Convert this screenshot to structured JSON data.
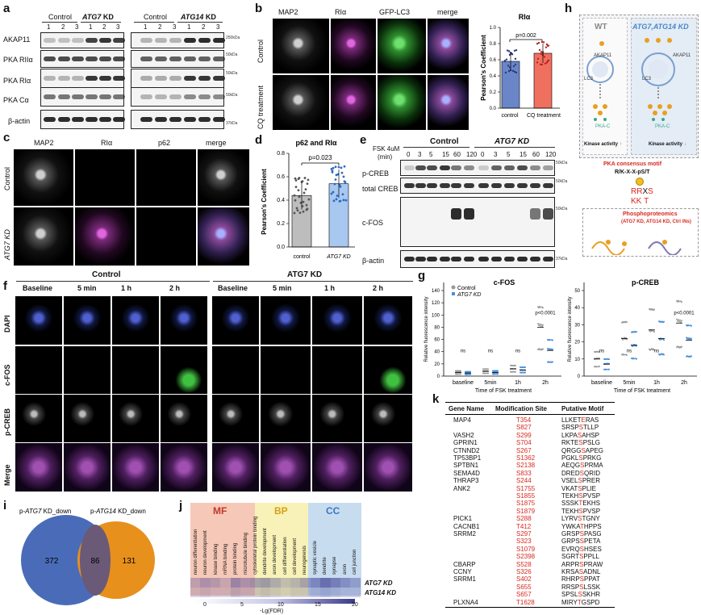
{
  "panels": {
    "a": "a",
    "b": "b",
    "c": "c",
    "d": "d",
    "e": "e",
    "f": "f",
    "g": "g",
    "h": "h",
    "i": "i",
    "j": "j",
    "k": "k"
  },
  "a": {
    "group1_control": "Control",
    "group1_kd": "ATG7",
    "group1_kd_suffix": " KD",
    "group2_control": "Control",
    "group2_kd": "ATG14",
    "group2_kd_suffix": " KD",
    "lanes": [
      "1",
      "2",
      "3",
      "1",
      "2",
      "3"
    ],
    "rows": [
      "AKAP11",
      "PKA RIIα",
      "PKA RIα",
      "PKA Cα",
      "β-actin"
    ],
    "mw1": [
      "250kDa",
      "50kDa",
      "50kDa",
      "50kDa",
      "37kDa"
    ]
  },
  "b": {
    "cols": [
      "MAP2",
      "RIα",
      "GFP-LC3",
      "merge"
    ],
    "rows": [
      "Control",
      "CQ treatment"
    ],
    "chart_title": "RIα",
    "pval": "p=0.002",
    "ylabel": "Pearson's Coefficient",
    "yticks": [
      "0.0",
      "0.2",
      "0.4",
      "0.6",
      "0.8",
      "1.0"
    ],
    "xcats": [
      "control",
      "CQ treatment"
    ]
  },
  "c": {
    "cols": [
      "MAP2",
      "RIα",
      "p62",
      "merge"
    ],
    "rows": [
      "Control",
      "ATG7 KD"
    ]
  },
  "d": {
    "title": "p62 and RIα",
    "pval": "p=0.023",
    "ylabel": "Pearson's Coefficient",
    "yticks": [
      "0.0",
      "0.2",
      "0.4",
      "0.6",
      "0.8"
    ],
    "xcats": [
      "control",
      "ATG7 KD"
    ]
  },
  "e": {
    "fsk": "FSK 4uM",
    "min": "(min)",
    "control": "Control",
    "kd": "ATG7 KD",
    "times": [
      "0",
      "3",
      "5",
      "15",
      "60",
      "120",
      "0",
      "3",
      "5",
      "15",
      "60",
      "120"
    ],
    "rows": [
      "p-CREB",
      "total CREB",
      "c-FOS",
      "β-actin"
    ],
    "mw": [
      "50kDa",
      "50kDa",
      "50kDa",
      "37kDa"
    ]
  },
  "f": {
    "control": "Control",
    "kd": "ATG7 KD",
    "times": [
      "Baseline",
      "5 min",
      "1 h",
      "2 h",
      "Baseline",
      "5 min",
      "1 h",
      "2 h"
    ],
    "rows": [
      "DAPI",
      "c-FOS",
      "p-CREB",
      "Merge"
    ]
  },
  "g": {
    "cfos_title": "c-FOS",
    "pcreb_title": "p-CREB",
    "legend": [
      "Control",
      "ATG7 KD"
    ],
    "ylabel": "Relative fluorescence intensity",
    "xlabel": "Time of FSK treatment",
    "xcats": [
      "baseline",
      "5min",
      "1h",
      "2h"
    ],
    "ns": "ns",
    "pval": "p<0.0001",
    "cfos_yticks": [
      "0",
      "20",
      "40",
      "60",
      "80",
      "100",
      "120",
      "140"
    ],
    "pcreb_yticks": [
      "0",
      "10",
      "20",
      "30",
      "40",
      "50"
    ]
  },
  "h": {
    "wt": "WT",
    "kd": "ATG7,ATG14 KD",
    "akap": "AKAP11",
    "lc3": "LC3",
    "pkac": "PKA-C",
    "kinase_activity": "Kinase activity",
    "up": "↑",
    "down": "↓",
    "motif_title": "PKA consensus motif",
    "motif": "R/K-X-X-pS/T",
    "rrxs_r": "RR",
    "rrxs_x": "X",
    "rrxs_s": "S",
    "kkt_k": "KK",
    "kkt_t": "T",
    "phospho": "Phosphoproteomics",
    "phospho_sub": "(ATG7 KD, ATG14 KD, Ctrl iNs)"
  },
  "i": {
    "label1": "p-ATG7 KD_down",
    "label2": "p-ATG14 KD_down",
    "left": "372",
    "mid": "86",
    "right": "131"
  },
  "j": {
    "mf": "MF",
    "bp": "BP",
    "cc": "CC",
    "terms": [
      "neuron differentiation",
      "neuron development",
      "kinase binding",
      "mRNA binding",
      "protein binding",
      "microtubule binding",
      "cytoskeletal protein binding",
      "dendrite development",
      "axon development",
      "cell differentiation",
      "cell development",
      "neurogenesis",
      "synaptic vesicle",
      "dendrite",
      "synapse",
      "axon",
      "cell junction"
    ],
    "rows": [
      "ATG7 KD",
      "ATG14 KD"
    ],
    "ticks": [
      "0",
      "5",
      "10",
      "15",
      "20"
    ],
    "xlabel": "-Lg(FDR)",
    "chart_data": {
      "type": "heatmap",
      "x": [
        "neuron differentiation",
        "neuron development",
        "kinase binding",
        "mRNA binding",
        "protein binding",
        "microtubule binding",
        "cytoskeletal protein binding",
        "dendrite development",
        "axon development",
        "cell differentiation",
        "cell development",
        "neurogenesis",
        "synaptic vesicle",
        "dendrite",
        "synapse",
        "axon",
        "cell junction"
      ],
      "y": [
        "ATG7 KD",
        "ATG14 KD"
      ],
      "values": [
        [
          4,
          6,
          5,
          3,
          8,
          6,
          7,
          8,
          6,
          4,
          5,
          7,
          9,
          12,
          10,
          8,
          6
        ],
        [
          2,
          3,
          2,
          2,
          4,
          3,
          3,
          4,
          3,
          2,
          3,
          3,
          4,
          5,
          4,
          3,
          3
        ]
      ],
      "colorbar": [
        0,
        20
      ]
    }
  },
  "k": {
    "headers": [
      "Gene Name",
      "Modification Site",
      "Putative Motif"
    ],
    "rows": [
      {
        "gene": "MAP4",
        "site": "T354",
        "pre": "LLKET",
        "mid": "E",
        "post": "RAS"
      },
      {
        "gene": "",
        "site": "S827",
        "pre": "SRSP",
        "mid": "S",
        "post": "TLLP"
      },
      {
        "gene": "VASH2",
        "site": "S299",
        "pre": "LKPA",
        "mid": "S",
        "post": "AHSP"
      },
      {
        "gene": "GPRIN1",
        "site": "S704",
        "pre": "RKTE",
        "mid": "S",
        "post": "PSLG"
      },
      {
        "gene": "CTNND2",
        "site": "S267",
        "pre": "QRGG",
        "mid": "S",
        "post": "APEG"
      },
      {
        "gene": "TP53BP1",
        "site": "S1362",
        "pre": "PGKL",
        "mid": "S",
        "post": "PRKG"
      },
      {
        "gene": "SPTBN1",
        "site": "S2138",
        "pre": "AEQG",
        "mid": "S",
        "post": "PRMA"
      },
      {
        "gene": "SEMA4D",
        "site": "S833",
        "pre": "DRED",
        "mid": "S",
        "post": "QRID"
      },
      {
        "gene": "THRAP3",
        "site": "S244",
        "pre": "VSEL",
        "mid": "S",
        "post": "PRER"
      },
      {
        "gene": "ANK2",
        "site": "S1755",
        "pre": "VKAT",
        "mid": "S",
        "post": "PLIE"
      },
      {
        "gene": "",
        "site": "S1855",
        "pre": "TEKH",
        "mid": "S",
        "post": "PVSP"
      },
      {
        "gene": "",
        "site": "S1875",
        "pre": "SSSK",
        "mid": "T",
        "post": "EKHS"
      },
      {
        "gene": "",
        "site": "S1879",
        "pre": "TEKH",
        "mid": "S",
        "post": "PVSP"
      },
      {
        "gene": "PICK1",
        "site": "S288",
        "pre": "LYRV",
        "mid": "S",
        "post": "TGNY"
      },
      {
        "gene": "CACNB1",
        "site": "T412",
        "pre": "YWKA",
        "mid": "T",
        "post": "HPPS"
      },
      {
        "gene": "SRRM2",
        "site": "S297",
        "pre": "GRSP",
        "mid": "S",
        "post": "PASG"
      },
      {
        "gene": "",
        "site": "S323",
        "pre": "GRPS",
        "mid": "S",
        "post": "PETA"
      },
      {
        "gene": "",
        "site": "S1079",
        "pre": "EVRQ",
        "mid": "S",
        "post": "HSES"
      },
      {
        "gene": "",
        "site": "S2398",
        "pre": "SGRT",
        "mid": "S",
        "post": "PPLL"
      },
      {
        "gene": "CBARP",
        "site": "S528",
        "pre": "ARPR",
        "mid": "S",
        "post": "PRAW"
      },
      {
        "gene": "CCNY",
        "site": "S326",
        "pre": "KRSA",
        "mid": "S",
        "post": "ADNL"
      },
      {
        "gene": "SRRM1",
        "site": "S402",
        "pre": "RHRP",
        "mid": "S",
        "post": "PPAT"
      },
      {
        "gene": "",
        "site": "S655",
        "pre": "RRSP",
        "mid": "S",
        "post": "LSSK"
      },
      {
        "gene": "",
        "site": "S657",
        "pre": "SPSL",
        "mid": "S",
        "post": "SKHR"
      },
      {
        "gene": "PLXNA4",
        "site": "T1628",
        "pre": "MIRY",
        "mid": "T",
        "post": "GSPD"
      }
    ]
  }
}
